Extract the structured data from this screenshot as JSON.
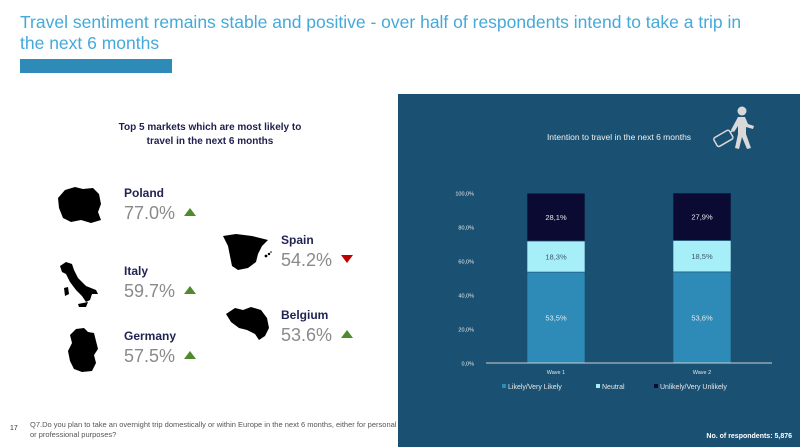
{
  "slide": {
    "title": "Travel sentiment remains stable and positive - over half of respondents intend to take a trip in the next 6 months",
    "page_number": "17",
    "footnote": "Q7.Do you plan to take an overnight trip domestically or within Europe in the next 6 months, either for personal or professional purposes?",
    "accent_color": "#2e8bb7"
  },
  "markets": {
    "heading": "Top 5 markets which are most likely to travel in the next 6 months",
    "items": [
      {
        "name": "Poland",
        "value": "77.0%",
        "trend": "up"
      },
      {
        "name": "Spain",
        "value": "54.2%",
        "trend": "down"
      },
      {
        "name": "Italy",
        "value": "59.7%",
        "trend": "up"
      },
      {
        "name": "Belgium",
        "value": "53.6%",
        "trend": "up"
      },
      {
        "name": "Germany",
        "value": "57.5%",
        "trend": "up"
      }
    ],
    "trend_colors": {
      "up": "#4f8a2e",
      "down": "#c00000"
    }
  },
  "panel": {
    "title": "Intention to travel in the next 6 months",
    "icon": "traveler-with-suitcase-icon",
    "respondents": "No. of respondents: 5,876",
    "background": "#1a5072"
  },
  "chart_data": {
    "type": "bar",
    "stacked": true,
    "title": "Intention to travel in the next 6 months",
    "categories": [
      "Wave 1",
      "Wave 2"
    ],
    "series": [
      {
        "name": "Likely/Very Likely",
        "values": [
          53.5,
          53.6
        ],
        "labels": [
          "53,5%",
          "53,6%"
        ],
        "color": "#2e8bb7"
      },
      {
        "name": "Neutral",
        "values": [
          18.3,
          18.5
        ],
        "labels": [
          "18,3%",
          "18,5%"
        ],
        "color": "#a6eef8"
      },
      {
        "name": "Unlikely/Very Unlikely",
        "values": [
          28.1,
          27.9
        ],
        "labels": [
          "28,1%",
          "27,9%"
        ],
        "color": "#0a0a33"
      }
    ],
    "yticks": [
      "0,0%",
      "20,0%",
      "40,0%",
      "60,0%",
      "80,0%",
      "100,0%"
    ],
    "ylim": [
      0,
      100
    ],
    "xlabel": "",
    "ylabel": "",
    "grid": false,
    "legend_position": "bottom"
  }
}
